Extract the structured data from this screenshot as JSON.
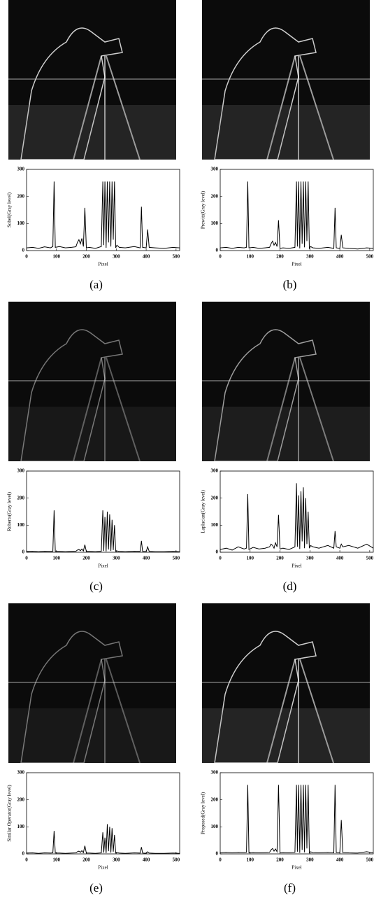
{
  "chart_data": [
    {
      "type": "line",
      "ylabel": "Sobel(Gray level)",
      "xlabel": "Pixel",
      "caption": "(a)",
      "color": "#000000",
      "x": [
        0,
        20,
        40,
        60,
        80,
        88,
        92,
        96,
        110,
        130,
        150,
        165,
        170,
        175,
        180,
        185,
        190,
        195,
        200,
        210,
        230,
        250,
        255,
        258,
        262,
        266,
        270,
        274,
        278,
        282,
        286,
        290,
        294,
        298,
        302,
        310,
        330,
        360,
        380,
        384,
        388,
        400,
        405,
        410,
        430,
        460,
        490,
        512
      ],
      "values": [
        10,
        12,
        8,
        14,
        10,
        15,
        255,
        12,
        15,
        10,
        12,
        14,
        30,
        40,
        25,
        45,
        15,
        158,
        10,
        12,
        8,
        15,
        255,
        20,
        255,
        10,
        255,
        30,
        255,
        15,
        255,
        40,
        255,
        10,
        20,
        12,
        10,
        15,
        10,
        162,
        12,
        10,
        78,
        12,
        10,
        8,
        12,
        10
      ],
      "xlim": [
        0,
        512
      ],
      "ylim": [
        0,
        300
      ],
      "xticks": [
        0,
        100,
        200,
        300,
        400,
        500
      ],
      "yticks": [
        0,
        100,
        200,
        300
      ]
    },
    {
      "type": "line",
      "ylabel": "Prewitt(Gray level)",
      "xlabel": "Pixel",
      "caption": "(b)",
      "color": "#000000",
      "x": [
        0,
        20,
        40,
        60,
        80,
        88,
        92,
        96,
        110,
        130,
        150,
        165,
        170,
        175,
        180,
        185,
        190,
        195,
        200,
        210,
        230,
        250,
        255,
        258,
        262,
        266,
        270,
        274,
        278,
        282,
        286,
        290,
        294,
        298,
        302,
        310,
        330,
        360,
        380,
        384,
        388,
        400,
        405,
        410,
        430,
        460,
        490,
        512
      ],
      "values": [
        10,
        12,
        8,
        12,
        10,
        12,
        255,
        10,
        12,
        8,
        10,
        12,
        25,
        35,
        20,
        30,
        15,
        112,
        8,
        10,
        8,
        12,
        255,
        15,
        255,
        8,
        255,
        25,
        255,
        12,
        255,
        35,
        255,
        8,
        15,
        10,
        8,
        12,
        8,
        158,
        10,
        8,
        58,
        10,
        8,
        6,
        10,
        8
      ],
      "xlim": [
        0,
        512
      ],
      "ylim": [
        0,
        300
      ],
      "xticks": [
        0,
        100,
        200,
        300,
        400,
        500
      ],
      "yticks": [
        0,
        100,
        200,
        300
      ]
    },
    {
      "type": "line",
      "ylabel": "Roberts(Gray level)",
      "xlabel": "Pixel",
      "caption": "(c)",
      "color": "#000000",
      "x": [
        0,
        20,
        40,
        60,
        80,
        88,
        92,
        96,
        110,
        130,
        150,
        165,
        170,
        175,
        180,
        185,
        190,
        195,
        200,
        210,
        230,
        250,
        255,
        258,
        262,
        266,
        270,
        274,
        278,
        282,
        286,
        290,
        294,
        298,
        302,
        310,
        330,
        360,
        380,
        384,
        388,
        400,
        405,
        410,
        430,
        460,
        490,
        512
      ],
      "values": [
        3,
        4,
        2,
        4,
        3,
        4,
        155,
        3,
        3,
        2,
        3,
        4,
        8,
        10,
        6,
        12,
        5,
        28,
        3,
        3,
        2,
        4,
        155,
        5,
        130,
        3,
        150,
        10,
        140,
        5,
        120,
        8,
        100,
        3,
        5,
        3,
        2,
        4,
        3,
        42,
        3,
        2,
        20,
        3,
        2,
        2,
        3,
        2
      ],
      "xlim": [
        0,
        512
      ],
      "ylim": [
        0,
        300
      ],
      "xticks": [
        0,
        100,
        200,
        300,
        400,
        500
      ],
      "yticks": [
        0,
        100,
        200,
        300
      ]
    },
    {
      "type": "line",
      "ylabel": "Laplacian(Gray level)",
      "xlabel": "Pixel",
      "caption": "(d)",
      "color": "#000000",
      "x": [
        0,
        20,
        40,
        60,
        80,
        88,
        92,
        96,
        110,
        130,
        150,
        165,
        170,
        175,
        180,
        185,
        190,
        195,
        200,
        210,
        230,
        250,
        255,
        258,
        262,
        266,
        270,
        274,
        278,
        282,
        286,
        290,
        294,
        298,
        302,
        310,
        330,
        360,
        380,
        384,
        388,
        400,
        405,
        410,
        430,
        460,
        490,
        512
      ],
      "values": [
        10,
        15,
        8,
        20,
        12,
        15,
        215,
        10,
        18,
        12,
        15,
        20,
        30,
        25,
        15,
        35,
        20,
        138,
        12,
        15,
        10,
        20,
        255,
        20,
        210,
        12,
        225,
        40,
        240,
        15,
        200,
        30,
        150,
        15,
        25,
        20,
        15,
        25,
        15,
        78,
        20,
        15,
        30,
        20,
        25,
        15,
        30,
        15
      ],
      "xlim": [
        0,
        512
      ],
      "ylim": [
        0,
        300
      ],
      "xticks": [
        0,
        100,
        200,
        300,
        400,
        500
      ],
      "yticks": [
        0,
        100,
        200,
        300
      ]
    },
    {
      "type": "line",
      "ylabel": "Similar Operator(Gray level)",
      "xlabel": "Pixel",
      "caption": "(e)",
      "color": "#000000",
      "x": [
        0,
        20,
        40,
        60,
        80,
        88,
        92,
        96,
        110,
        130,
        150,
        165,
        170,
        175,
        180,
        185,
        190,
        195,
        200,
        210,
        230,
        250,
        255,
        258,
        262,
        266,
        270,
        274,
        278,
        282,
        286,
        290,
        294,
        298,
        302,
        310,
        330,
        360,
        380,
        384,
        388,
        400,
        405,
        410,
        430,
        460,
        490,
        512
      ],
      "values": [
        3,
        4,
        2,
        4,
        3,
        4,
        85,
        3,
        3,
        2,
        3,
        4,
        8,
        10,
        6,
        12,
        5,
        30,
        3,
        3,
        2,
        4,
        80,
        5,
        60,
        3,
        110,
        10,
        100,
        5,
        95,
        8,
        70,
        3,
        5,
        3,
        2,
        4,
        3,
        25,
        3,
        2,
        8,
        3,
        2,
        2,
        3,
        2
      ],
      "xlim": [
        0,
        512
      ],
      "ylim": [
        0,
        300
      ],
      "xticks": [
        0,
        100,
        200,
        300,
        400,
        500
      ],
      "yticks": [
        0,
        100,
        200,
        300
      ]
    },
    {
      "type": "line",
      "ylabel": "Proposed(Gray level)",
      "xlabel": "Pixel",
      "caption": "(f)",
      "color": "#000000",
      "x": [
        0,
        20,
        40,
        60,
        80,
        88,
        92,
        96,
        110,
        130,
        150,
        165,
        170,
        175,
        180,
        185,
        190,
        195,
        200,
        210,
        230,
        250,
        255,
        258,
        262,
        266,
        270,
        274,
        278,
        282,
        286,
        290,
        294,
        298,
        302,
        310,
        330,
        360,
        380,
        384,
        388,
        400,
        405,
        410,
        430,
        460,
        490,
        512
      ],
      "values": [
        5,
        6,
        4,
        6,
        5,
        6,
        255,
        4,
        5,
        4,
        5,
        6,
        15,
        20,
        10,
        18,
        8,
        255,
        4,
        5,
        4,
        6,
        255,
        8,
        255,
        4,
        255,
        15,
        255,
        6,
        255,
        20,
        255,
        4,
        8,
        5,
        4,
        6,
        4,
        255,
        5,
        4,
        125,
        5,
        4,
        3,
        8,
        4
      ],
      "xlim": [
        0,
        512
      ],
      "ylim": [
        0,
        300
      ],
      "xticks": [
        0,
        100,
        200,
        300,
        400,
        500
      ],
      "yticks": [
        0,
        100,
        200,
        300
      ]
    }
  ]
}
